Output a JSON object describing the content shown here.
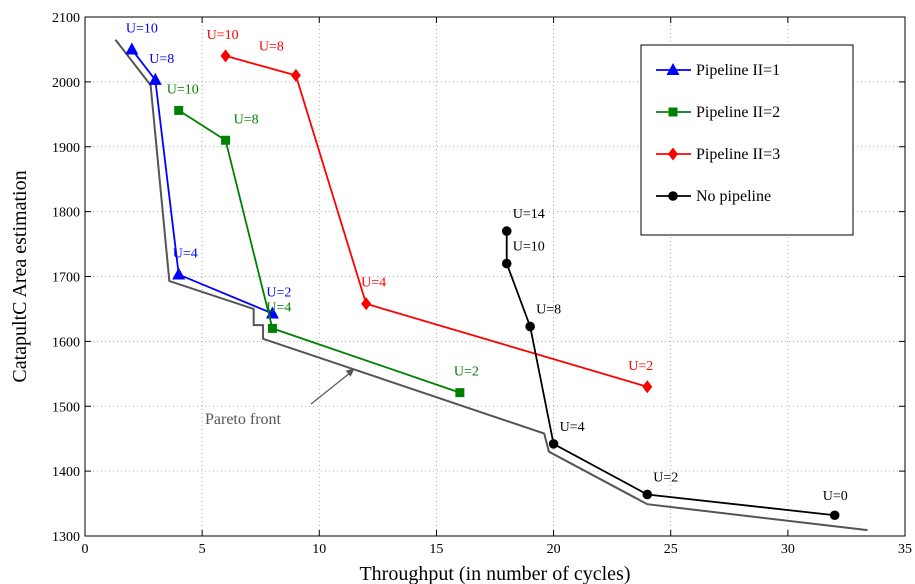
{
  "chart_data": {
    "type": "line",
    "xlabel": "Throughput (in number of cycles)",
    "ylabel": "CatapultC Area estimation",
    "xlim": [
      0,
      35
    ],
    "ylim": [
      1300,
      2100
    ],
    "xticks": [
      0,
      5,
      10,
      15,
      20,
      25,
      30,
      35
    ],
    "yticks": [
      1300,
      1400,
      1500,
      1600,
      1700,
      1800,
      1900,
      2000,
      2100
    ],
    "grid": true,
    "legend_position": "top-right",
    "series": [
      {
        "name": "Pipeline II=1",
        "color": "#0000ff",
        "marker": "triangle",
        "points": [
          {
            "x": 2,
            "y": 2050,
            "label": "U=10"
          },
          {
            "x": 3,
            "y": 2003,
            "label": "U=8"
          },
          {
            "x": 4,
            "y": 1703,
            "label": "U=4"
          },
          {
            "x": 8,
            "y": 1643,
            "label": "U=2"
          }
        ]
      },
      {
        "name": "Pipeline II=2",
        "color": "#008000",
        "marker": "square",
        "points": [
          {
            "x": 4,
            "y": 1956,
            "label": "U=10"
          },
          {
            "x": 6,
            "y": 1910,
            "label": "U=8"
          },
          {
            "x": 8,
            "y": 1620,
            "label": "U=4"
          },
          {
            "x": 16,
            "y": 1521,
            "label": "U=2"
          }
        ]
      },
      {
        "name": "Pipeline II=3",
        "color": "#ff0000",
        "marker": "diamond",
        "points": [
          {
            "x": 6,
            "y": 2040,
            "label": "U=10"
          },
          {
            "x": 9,
            "y": 2010,
            "label": "U=8"
          },
          {
            "x": 12,
            "y": 1658,
            "label": "U=4"
          },
          {
            "x": 24,
            "y": 1530,
            "label": "U=2"
          }
        ]
      },
      {
        "name": "No pipeline",
        "color": "#000000",
        "marker": "circle",
        "points": [
          {
            "x": 18,
            "y": 1770,
            "label": "U=14"
          },
          {
            "x": 18,
            "y": 1720,
            "label": "U=10"
          },
          {
            "x": 19,
            "y": 1623,
            "label": "U=8"
          },
          {
            "x": 20,
            "y": 1442,
            "label": "U=4"
          },
          {
            "x": 24,
            "y": 1364,
            "label": "U=2"
          },
          {
            "x": 32,
            "y": 1332,
            "label": "U=0"
          }
        ]
      }
    ],
    "pareto_front": {
      "label": "Pareto front",
      "color": "#555555",
      "points": [
        [
          1.3,
          2065
        ],
        [
          2.8,
          1995
        ],
        [
          3.6,
          1693
        ],
        [
          7.2,
          1650
        ],
        [
          7.2,
          1625
        ],
        [
          7.6,
          1625
        ],
        [
          7.6,
          1604
        ],
        [
          19.6,
          1458
        ],
        [
          19.8,
          1430
        ],
        [
          24.0,
          1349
        ],
        [
          33.4,
          1309
        ]
      ]
    }
  }
}
